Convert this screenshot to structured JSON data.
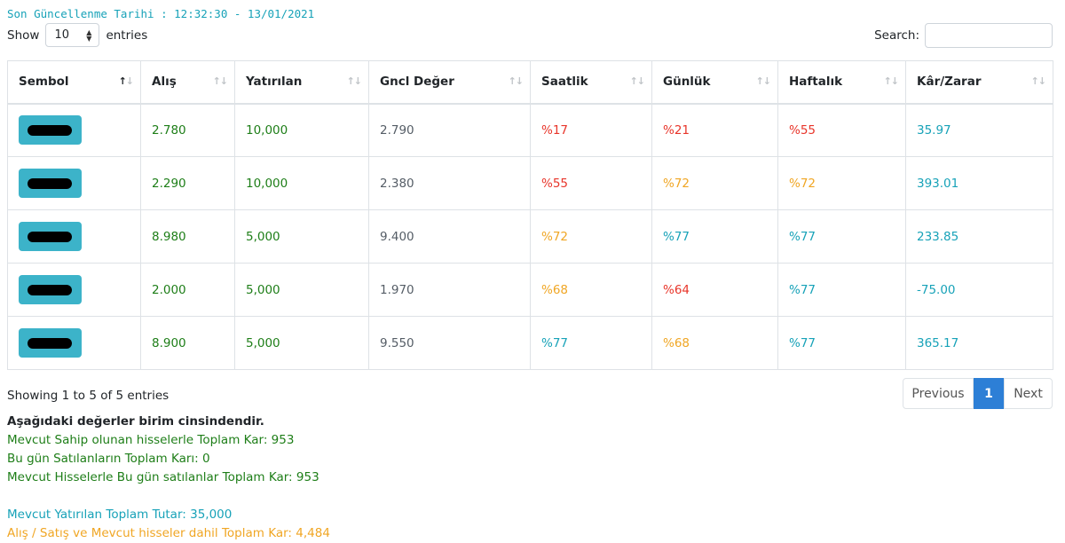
{
  "last_updated": "Son Güncellenme Tarihi : 12:32:30 - 13/01/2021",
  "length": {
    "show_label": "Show",
    "value": "10",
    "entries_label": "entries"
  },
  "search": {
    "label": "Search:",
    "value": ""
  },
  "table": {
    "headers": [
      "Sembol",
      "Alış",
      "Yatırılan",
      "Gncl Değer",
      "Saatlik",
      "Günlük",
      "Haftalık",
      "Kâr/Zarar"
    ],
    "rows": [
      {
        "alis": "2.780",
        "yatirilan": "10,000",
        "guncel": "2.790",
        "saatlik": "%17",
        "gunluk": "%21",
        "haftalik": "%55",
        "kar": "35.97"
      },
      {
        "alis": "2.290",
        "yatirilan": "10,000",
        "guncel": "2.380",
        "saatlik": "%55",
        "gunluk": "%72",
        "haftalik": "%72",
        "kar": "393.01"
      },
      {
        "alis": "8.980",
        "yatirilan": "5,000",
        "guncel": "9.400",
        "saatlik": "%72",
        "gunluk": "%77",
        "haftalik": "%77",
        "kar": "233.85"
      },
      {
        "alis": "2.000",
        "yatirilan": "5,000",
        "guncel": "1.970",
        "saatlik": "%68",
        "gunluk": "%64",
        "haftalik": "%77",
        "kar": "-75.00"
      },
      {
        "alis": "8.900",
        "yatirilan": "5,000",
        "guncel": "9.550",
        "saatlik": "%77",
        "gunluk": "%68",
        "haftalik": "%77",
        "kar": "365.17"
      }
    ]
  },
  "info": "Showing 1 to 5 of 5 entries",
  "pagination": {
    "previous": "Previous",
    "page": "1",
    "next": "Next"
  },
  "summary": {
    "heading": "Aşağıdaki değerler birim cinsindendir.",
    "line1": "Mevcut Sahip olunan hisselerle Toplam Kar: 953",
    "line2": "Bu gün Satılanların Toplam Karı: 0",
    "line3": "Mevcut Hisselerle Bu gün satılanlar Toplam Kar: 953",
    "line4": "Mevcut Yatırılan Toplam Tutar: 35,000",
    "line5": "Alış / Satış ve Mevcut hisseler dahil Toplam Kar: 4,484"
  },
  "colors": {
    "accent": "#17a2b8",
    "green": "#1e7e18",
    "red": "#e8352a",
    "orange": "#f0a624",
    "page_active": "#2d7fd6",
    "symbol_button": "#3cb3c9"
  }
}
